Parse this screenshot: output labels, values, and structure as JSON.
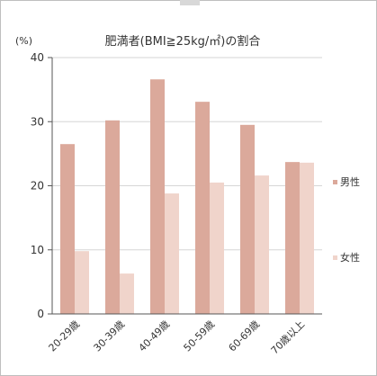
{
  "chart_data": {
    "type": "bar",
    "title": "肥満者(BMI≧25kg/㎡)の割合",
    "ylabel": "(%)",
    "xlabel": "",
    "ylim": [
      0,
      40
    ],
    "yticks": [
      0,
      10,
      20,
      30,
      40
    ],
    "categories": [
      "20-29歳",
      "30-39歳",
      "40-49歳",
      "50-59歳",
      "60-69歳",
      "70歳以上"
    ],
    "series": [
      {
        "name": "男性",
        "color": "#dba99b",
        "values": [
          26.5,
          30.2,
          36.6,
          33.1,
          29.5,
          23.7
        ]
      },
      {
        "name": "女性",
        "color": "#f0d4cb",
        "values": [
          9.8,
          6.3,
          18.8,
          20.5,
          21.6,
          23.6
        ]
      }
    ],
    "grid": true,
    "legend": "right"
  }
}
